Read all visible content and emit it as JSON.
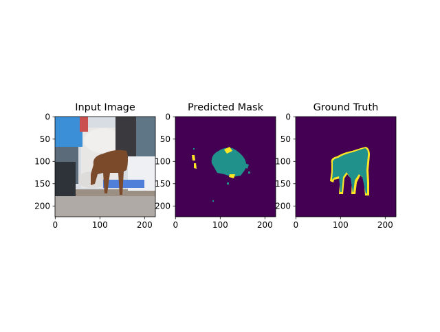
{
  "panels": [
    {
      "id": "input",
      "title": "Input Image",
      "x_ticks": [
        "0",
        "100",
        "200"
      ],
      "y_ticks": [
        "0",
        "50",
        "100",
        "150",
        "200"
      ],
      "colors": {
        "sky": "#d8dde4",
        "tarp_blue": "#3a8fd6",
        "tarp_red": "#c9504e",
        "sacks": "#e9e7e6",
        "dark": "#3a3a3e",
        "cow": "#7a4a2a",
        "ground": "#9c8f84",
        "road": "#b0aaa6",
        "blue_sheet": "#4f7fd8"
      }
    },
    {
      "id": "predicted",
      "title": "Predicted Mask",
      "x_ticks": [
        "0",
        "100",
        "200"
      ],
      "y_ticks": [
        "0",
        "50",
        "100",
        "150",
        "200"
      ],
      "colors": {
        "background": "#440154",
        "class_a": "#21918c",
        "class_b": "#fde725"
      }
    },
    {
      "id": "truth",
      "title": "Ground Truth",
      "x_ticks": [
        "0",
        "100",
        "200"
      ],
      "y_ticks": [
        "0",
        "50",
        "100",
        "150",
        "200"
      ],
      "colors": {
        "background": "#440154",
        "class_a": "#21918c",
        "class_b": "#fde725"
      }
    }
  ]
}
